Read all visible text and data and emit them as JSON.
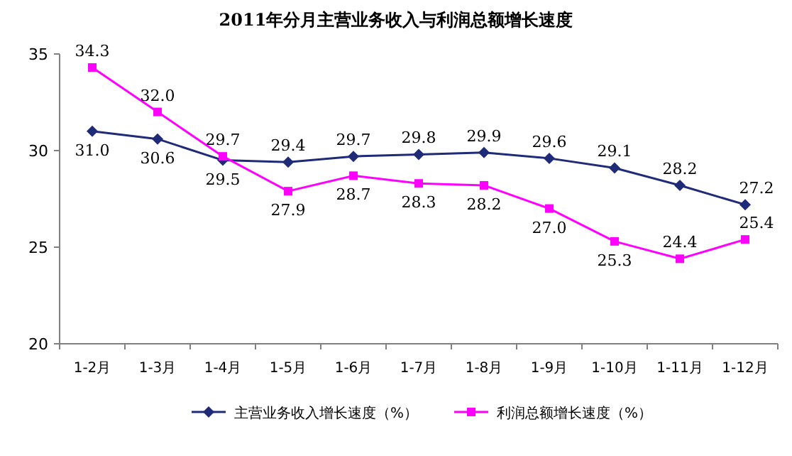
{
  "chart_data": {
    "type": "line",
    "title": "2011年分月主营业务收入与利润总额增长速度",
    "categories": [
      "1-2月",
      "1-3月",
      "1-4月",
      "1-5月",
      "1-6月",
      "1-7月",
      "1-8月",
      "1-9月",
      "1-10月",
      "1-11月",
      "1-12月"
    ],
    "series": [
      {
        "name": "主营业务收入增长速度（%）",
        "color": "#1f2a78",
        "marker": "diamond",
        "values": [
          31.0,
          30.6,
          29.5,
          29.4,
          29.7,
          29.8,
          29.9,
          29.6,
          29.1,
          28.2,
          27.2
        ],
        "value_labels": [
          "31.0",
          "30.6",
          "29.5",
          "29.4",
          "29.7",
          "29.8",
          "29.9",
          "29.6",
          "29.1",
          "28.2",
          "27.2"
        ]
      },
      {
        "name": "利润总额增长速度（%）",
        "color": "#ff00ff",
        "marker": "square",
        "values": [
          34.3,
          32.0,
          29.7,
          27.9,
          28.7,
          28.3,
          28.2,
          27.0,
          25.3,
          24.4,
          25.4
        ],
        "value_labels": [
          "34.3",
          "32.0",
          "29.7",
          "27.9",
          "28.7",
          "28.3",
          "28.2",
          "27.0",
          "25.3",
          "24.4",
          "25.4"
        ]
      }
    ],
    "ylim": [
      20,
      35
    ],
    "yticks": [
      20,
      25,
      30,
      35
    ],
    "grid": false,
    "legend": "bottom"
  }
}
